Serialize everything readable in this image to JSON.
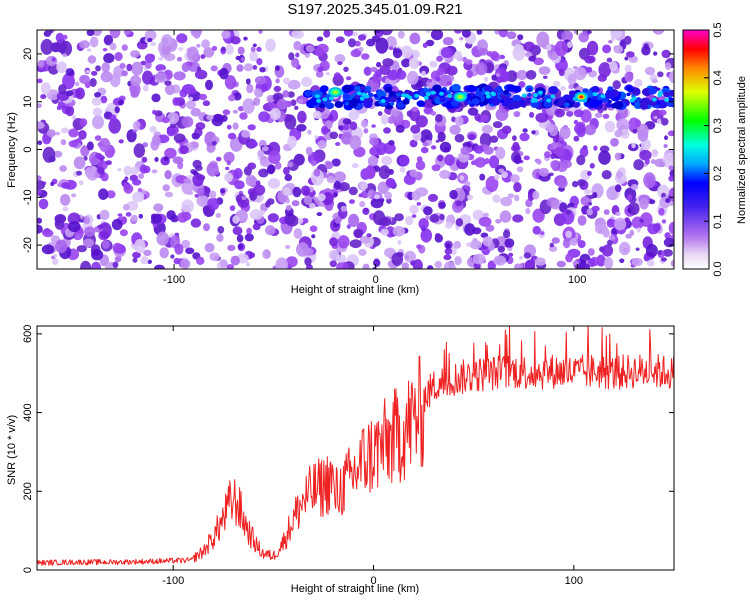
{
  "title": "S197.2025.345.01.09.R21",
  "chart_data": [
    {
      "type": "heatmap",
      "title": "S197.2025.345.01.09.R21",
      "xlabel": "Height of straight line (km)",
      "ylabel": "Frequency (Hz)",
      "xlim": [
        -168,
        148
      ],
      "ylim": [
        -25,
        25
      ],
      "xticks": [
        -100,
        0,
        100
      ],
      "yticks": [
        -20,
        -10,
        0,
        10,
        20
      ],
      "colorbar": {
        "label": "Normalized spectral amplitude",
        "range": [
          0,
          0.5
        ],
        "ticks": [
          "0.0",
          "0.1",
          "0.2",
          "0.3",
          "0.4",
          "0.5"
        ],
        "colors": [
          "#ffffff",
          "#e8d8f4",
          "#9933ee",
          "#3311ee",
          "#0000ff",
          "#00ffff",
          "#00ff00",
          "#ffff00",
          "#ff7700",
          "#ff0000",
          "#ff00ff"
        ]
      },
      "signal_band": {
        "frequency_hz": 11,
        "height_range_km": [
          -35,
          148
        ]
      },
      "hotspots": [
        {
          "height_km": -20,
          "frequency_hz": 12,
          "amplitude": 0.32
        },
        {
          "height_km": 42,
          "frequency_hz": 11,
          "amplitude": 0.3
        },
        {
          "height_km": 102,
          "frequency_hz": 11,
          "amplitude": 0.45
        }
      ]
    },
    {
      "type": "line",
      "xlabel": "Height of straight line (km)",
      "ylabel": "SNR (10 * v/v)",
      "xlim": [
        -168,
        150
      ],
      "ylim": [
        0,
        620
      ],
      "xticks": [
        -100,
        0,
        100
      ],
      "yticks": [
        0,
        200,
        400,
        600
      ],
      "color": "#ee2222",
      "series": [
        {
          "name": "SNR",
          "x": [
            -168,
            -150,
            -130,
            -110,
            -90,
            -85,
            -80,
            -75,
            -72,
            -70,
            -68,
            -65,
            -62,
            -58,
            -55,
            -50,
            -45,
            -40,
            -35,
            -30,
            -25,
            -20,
            -15,
            -10,
            -5,
            0,
            5,
            10,
            15,
            20,
            25,
            30,
            40,
            50,
            60,
            70,
            80,
            90,
            100,
            110,
            120,
            130,
            140,
            150
          ],
          "y": [
            18,
            20,
            20,
            22,
            25,
            40,
            70,
            110,
            140,
            150,
            145,
            110,
            80,
            50,
            35,
            30,
            60,
            110,
            150,
            170,
            180,
            200,
            230,
            260,
            300,
            320,
            340,
            360,
            380,
            410,
            440,
            470,
            490,
            500,
            505,
            510,
            505,
            510,
            505,
            510,
            505,
            510,
            510,
            505
          ]
        }
      ]
    }
  ]
}
